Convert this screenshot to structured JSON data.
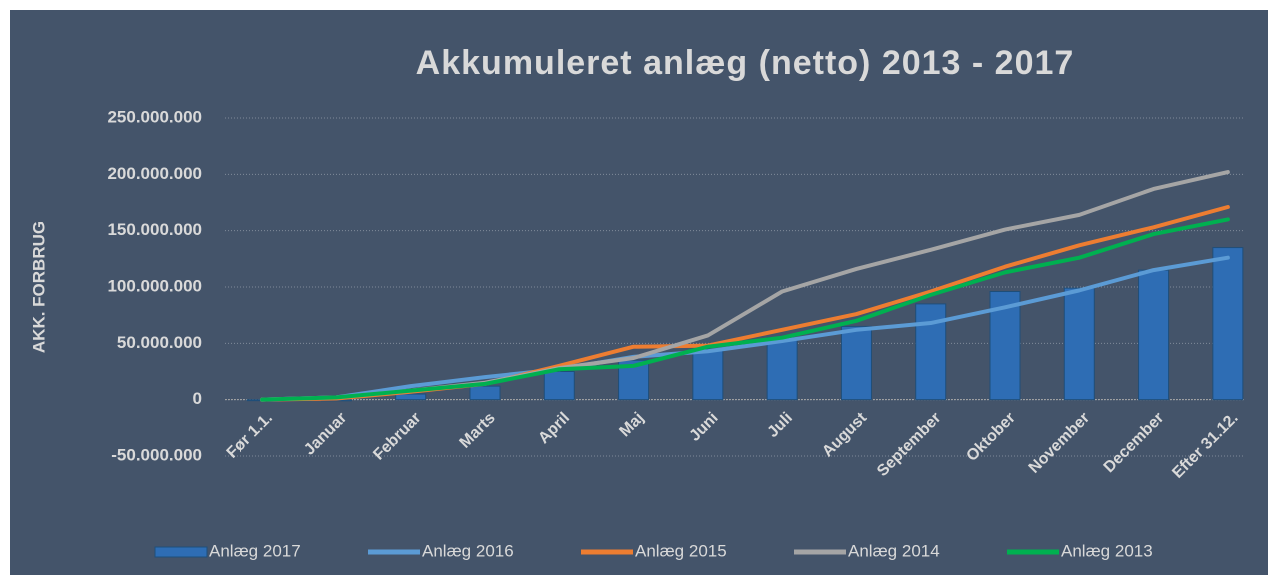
{
  "chart_data": {
    "type": "bar_line",
    "title": "Akkumuleret anlæg (netto) 2013 - 2017",
    "y_label": "AKK. FORBRUG",
    "categories": [
      "Før 1.1.",
      "Januar",
      "Februar",
      "Marts",
      "April",
      "Maj",
      "Juni",
      "Juli",
      "August",
      "September",
      "Oktober",
      "November",
      "December",
      "Efter 31.12."
    ],
    "series": [
      {
        "name": "Anlæg 2017",
        "kind": "bar",
        "color": "#2E6DB4",
        "values": [
          0,
          -1000000,
          5000000,
          12000000,
          25000000,
          35000000,
          45000000,
          55000000,
          65000000,
          85000000,
          96000000,
          99000000,
          115000000,
          135000000
        ]
      },
      {
        "name": "Anlæg 2016",
        "kind": "line",
        "color": "#5B9BD5",
        "values": [
          0,
          2000000,
          12000000,
          20000000,
          27000000,
          38000000,
          43000000,
          52000000,
          62000000,
          68000000,
          82000000,
          97000000,
          115000000,
          126000000
        ]
      },
      {
        "name": "Anlæg 2015",
        "kind": "line",
        "color": "#ED7D31",
        "values": [
          0,
          1000000,
          7000000,
          14000000,
          30000000,
          47000000,
          48000000,
          62000000,
          76000000,
          96000000,
          118000000,
          137000000,
          153000000,
          171000000
        ]
      },
      {
        "name": "Anlæg 2014",
        "kind": "line",
        "color": "#A5A5A5",
        "values": [
          0,
          2000000,
          8000000,
          15000000,
          28000000,
          37000000,
          57000000,
          96000000,
          116000000,
          133000000,
          151000000,
          164000000,
          187000000,
          202000000
        ]
      },
      {
        "name": "Anlæg 2013",
        "kind": "line",
        "color": "#00B050",
        "values": [
          0,
          2000000,
          8000000,
          14000000,
          27000000,
          30000000,
          47000000,
          55000000,
          70000000,
          93000000,
          113000000,
          126000000,
          147000000,
          160000000
        ]
      }
    ],
    "ylim": [
      -50000000,
      250000000
    ],
    "yticks": [
      {
        "value": -50000000,
        "label": "-50.000.000"
      },
      0,
      {
        "value": 50000000,
        "label": "50.000.000"
      },
      {
        "value": 100000000,
        "label": "100.000.000"
      },
      {
        "value": 150000000,
        "label": "150.000.000"
      },
      {
        "value": 200000000,
        "label": "200.000.000"
      },
      {
        "value": 250000000,
        "label": "250.000.000"
      }
    ],
    "grid": true,
    "legend": "bottom"
  }
}
